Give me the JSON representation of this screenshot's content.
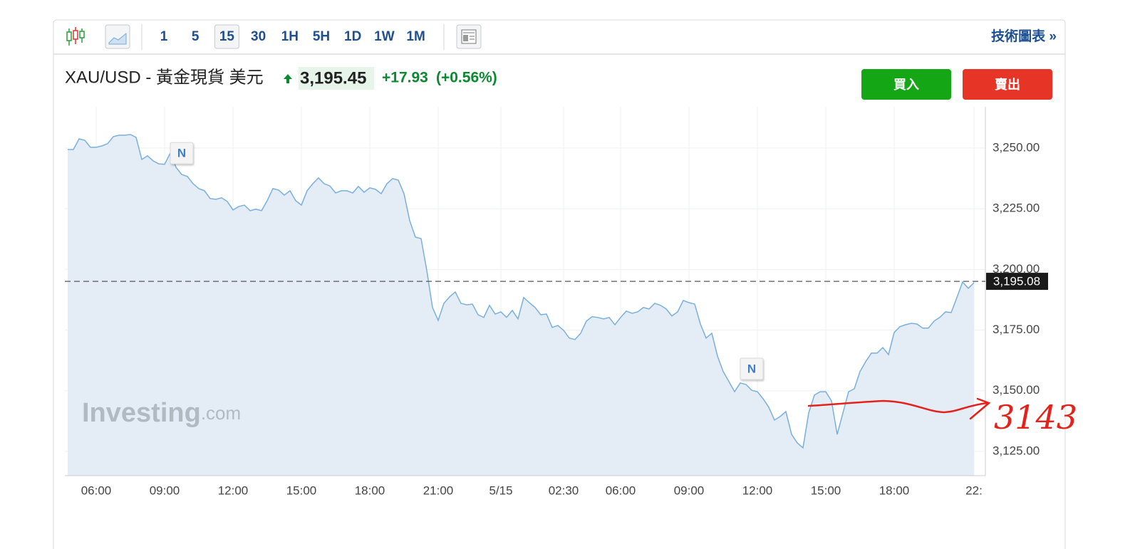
{
  "toolbar": {
    "intervals": [
      "1",
      "5",
      "15",
      "30",
      "1H",
      "5H",
      "1D",
      "1W",
      "1M"
    ],
    "selected_interval_index": 2,
    "link": "技術圖表 »"
  },
  "header": {
    "symbol": "XAU/USD - 黃金現貨 美元",
    "price": "3,195.45",
    "change": "+17.93",
    "change_pct": "(+0.56%)"
  },
  "buttons": {
    "buy": "買入",
    "sell": "賣出"
  },
  "chart_data": {
    "type": "area",
    "color": "#7aafdc",
    "fill_color": "#e4edf6",
    "grid": true,
    "categories": [
      null,
      null,
      null,
      null,
      null,
      "06:00",
      null,
      null,
      null,
      null,
      null,
      null,
      null,
      null,
      null,
      null,
      null,
      "09:00",
      null,
      null,
      null,
      null,
      null,
      null,
      null,
      null,
      null,
      null,
      null,
      "12:00",
      null,
      null,
      null,
      null,
      null,
      null,
      null,
      null,
      null,
      null,
      null,
      "15:00",
      null,
      null,
      null,
      null,
      null,
      null,
      null,
      null,
      null,
      null,
      null,
      "18:00",
      null,
      null,
      null,
      null,
      null,
      null,
      null,
      null,
      null,
      null,
      null,
      "21:00",
      null,
      null,
      null,
      null,
      null,
      null,
      null,
      null,
      null,
      null,
      "5/15",
      null,
      null,
      null,
      null,
      null,
      null,
      null,
      null,
      null,
      null,
      "02:30",
      null,
      null,
      null,
      null,
      null,
      null,
      null,
      null,
      null,
      "06:00",
      null,
      null,
      null,
      null,
      null,
      null,
      null,
      null,
      null,
      null,
      null,
      "09:00",
      null,
      null,
      null,
      null,
      null,
      null,
      null,
      null,
      null,
      null,
      null,
      "12:00",
      null,
      null,
      null,
      null,
      null,
      null,
      null,
      null,
      null,
      null,
      null,
      "15:00",
      null,
      null,
      null,
      null,
      null,
      null,
      null,
      null,
      null,
      null,
      null,
      "18:00",
      null,
      null,
      null,
      null,
      null,
      null,
      null,
      null,
      null,
      null,
      null,
      null,
      null,
      "22:"
    ],
    "values": [
      3249.4,
      3249.4,
      3253.8,
      3253.2,
      3250.3,
      3250.3,
      3250.9,
      3251.8,
      3254.7,
      3255.3,
      3255.3,
      3255.6,
      3254.4,
      3245.3,
      3246.8,
      3244.7,
      3243.5,
      3243.3,
      3247.9,
      3242.1,
      3239.1,
      3238.3,
      3235.3,
      3233.3,
      3232.4,
      3229.2,
      3228.9,
      3229.5,
      3228.0,
      3224.5,
      3225.9,
      3226.5,
      3224.2,
      3224.8,
      3224.2,
      3228.3,
      3233.3,
      3232.7,
      3230.6,
      3232.4,
      3228.3,
      3226.5,
      3232.4,
      3235.3,
      3237.7,
      3235.3,
      3234.4,
      3231.5,
      3232.4,
      3232.4,
      3231.5,
      3234.2,
      3231.8,
      3233.6,
      3233.0,
      3231.2,
      3235.3,
      3237.4,
      3236.8,
      3231.2,
      3220.1,
      3213.3,
      3212.7,
      3199.5,
      3184.3,
      3179.0,
      3186.0,
      3188.7,
      3190.7,
      3186.0,
      3185.4,
      3185.7,
      3181.3,
      3180.2,
      3185.2,
      3181.6,
      3182.5,
      3180.2,
      3183.1,
      3179.6,
      3188.4,
      3186.3,
      3184.3,
      3181.3,
      3181.6,
      3176.1,
      3176.9,
      3174.9,
      3171.7,
      3171.1,
      3173.7,
      3178.7,
      3180.5,
      3180.2,
      3179.6,
      3180.2,
      3177.2,
      3180.2,
      3182.8,
      3181.9,
      3182.5,
      3184.3,
      3183.7,
      3186.0,
      3185.2,
      3183.7,
      3180.8,
      3182.5,
      3187.2,
      3186.3,
      3185.7,
      3177.5,
      3171.7,
      3173.7,
      3164.3,
      3157.9,
      3153.8,
      3149.6,
      3153.2,
      3152.6,
      3150.2,
      3149.6,
      3146.7,
      3143.2,
      3137.9,
      3139.4,
      3141.4,
      3132.0,
      3128.5,
      3126.5,
      3140.8,
      3148.2,
      3149.6,
      3149.6,
      3145.8,
      3132.0,
      3140.8,
      3149.6,
      3150.8,
      3157.9,
      3162.0,
      3165.5,
      3165.5,
      3167.8,
      3164.9,
      3174.0,
      3176.4,
      3177.2,
      3177.8,
      3177.5,
      3175.8,
      3175.8,
      3178.7,
      3180.2,
      3182.5,
      3182.2,
      3188.4,
      3194.8,
      3192.2,
      3194.5
    ],
    "ylim": [
      3115,
      3267
    ],
    "yticks": [
      {
        "value": 3125,
        "label": "3,125.00"
      },
      {
        "value": 3150,
        "label": "3,150.00"
      },
      {
        "value": 3175,
        "label": "3,175.00"
      },
      {
        "value": 3200,
        "label": "3,200.00"
      },
      {
        "value": 3225,
        "label": "3,225.00"
      },
      {
        "value": 3250,
        "label": "3,250.00"
      }
    ],
    "last_price": {
      "value": 3195.08,
      "label": "3,195.08"
    },
    "news_markers": [
      {
        "label": "N",
        "category_index": 20
      },
      {
        "label": "N",
        "category_index": 120
      }
    ],
    "watermark": {
      "brand": "Investing",
      "suffix": ".com"
    },
    "handwritten_annotation": "3143"
  }
}
